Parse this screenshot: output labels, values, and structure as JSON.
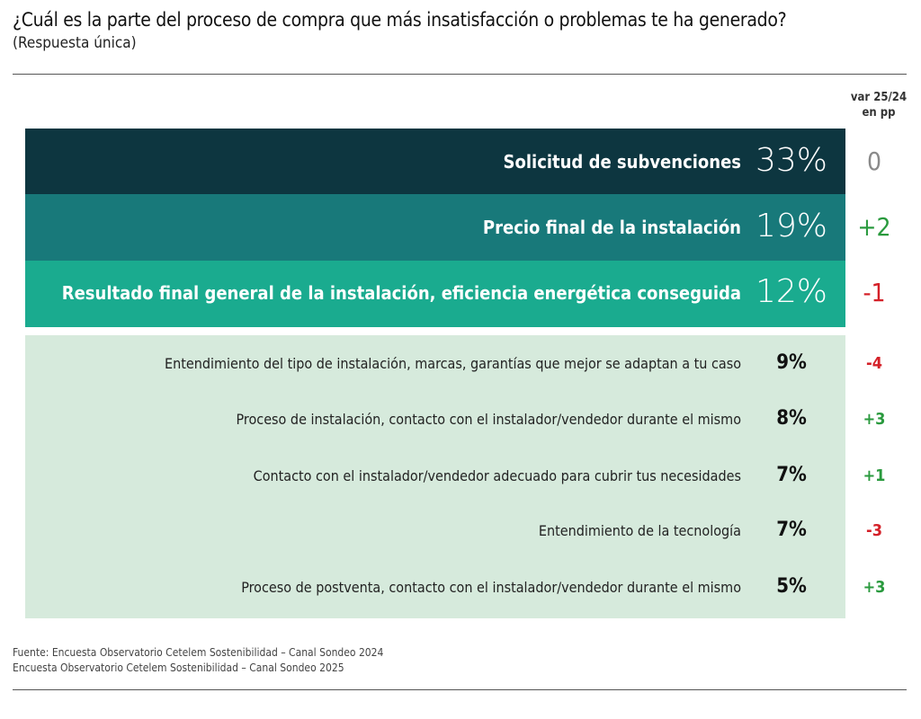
{
  "header": {
    "title": "¿Cuál es la parte del proceso de compra que más insatisfacción o problemas te ha generado?",
    "subtitle": "(Respuesta única)",
    "var_header": [
      "var 25/24",
      "en pp"
    ]
  },
  "table": {
    "rows": [
      {
        "label": "Solicitud de subvenciones",
        "value": "33%",
        "var": "0",
        "fill": "#0d3640",
        "var_color": "#8a8a8a"
      },
      {
        "label": "Precio final de la instalación",
        "value": "19%",
        "var": "+2",
        "fill": "#18797a",
        "var_color": "#2a9a3e"
      },
      {
        "label": "Resultado final general de la instalación, eficiencia energética conseguida",
        "value": "12%",
        "var": "-1",
        "fill": "#1aab8f",
        "var_color": "#d42028"
      },
      {
        "label": "Entendimiento del tipo de instalación, marcas, garantías que mejor se adaptan a tu caso",
        "value": "9%",
        "var": "-4",
        "var_color": "#d42028"
      },
      {
        "label": "Proceso de instalación, contacto con el instalador/vendedor durante el mismo",
        "value": "8%",
        "var": "+3",
        "var_color": "#2a9a3e"
      },
      {
        "label": "Contacto con el instalador/vendedor adecuado para cubrir tus necesidades",
        "value": "7%",
        "var": "+1",
        "var_color": "#2a9a3e"
      },
      {
        "label": "Entendimiento de la tecnología",
        "value": "7%",
        "var": "-3",
        "var_color": "#d42028"
      },
      {
        "label": "Proceso de postventa, contacto con el instalador/vendedor durante el mismo",
        "value": "5%",
        "var": "+3",
        "var_color": "#2a9a3e"
      }
    ]
  },
  "footer": {
    "sources": [
      "Fuente: Encuesta Observatorio Cetelem Sostenibilidad – Canal Sondeo 2024",
      "Encuesta Observatorio Cetelem Sostenibilidad – Canal Sondeo 2025"
    ]
  }
}
